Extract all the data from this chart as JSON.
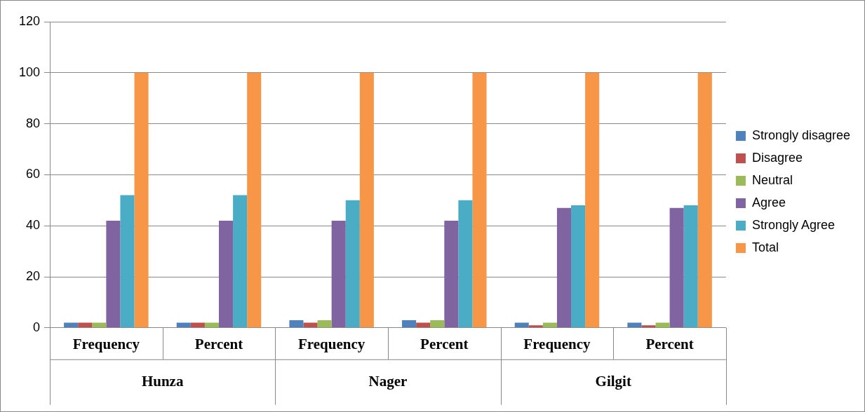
{
  "chart_data": {
    "type": "bar",
    "categories": [
      "Frequency",
      "Percent",
      "Frequency",
      "Percent",
      "Frequency",
      "Percent"
    ],
    "series": [
      {
        "name": "Strongly disagree",
        "color": "#4f81bd",
        "values": [
          2,
          2,
          3,
          3,
          2,
          2
        ]
      },
      {
        "name": "Disagree",
        "color": "#c0504d",
        "values": [
          2,
          2,
          2,
          2,
          1,
          1
        ]
      },
      {
        "name": "Neutral",
        "color": "#9bbb59",
        "values": [
          2,
          2,
          3,
          3,
          2,
          2
        ]
      },
      {
        "name": "Agree",
        "color": "#8064a2",
        "values": [
          42,
          42,
          42,
          42,
          47,
          47
        ]
      },
      {
        "name": "Strongly Agree",
        "color": "#4bacc6",
        "values": [
          52,
          52,
          50,
          50,
          48,
          48
        ]
      },
      {
        "name": "Total",
        "color": "#f79646",
        "values": [
          100,
          100,
          100,
          100,
          100,
          100
        ]
      }
    ],
    "annotations": [
      "Hunza",
      "Nager",
      "Gilgit"
    ],
    "ylim": [
      0,
      120
    ],
    "yticks": [
      0,
      20,
      40,
      60,
      80,
      100,
      120
    ],
    "grid": "y",
    "legend": "right"
  }
}
